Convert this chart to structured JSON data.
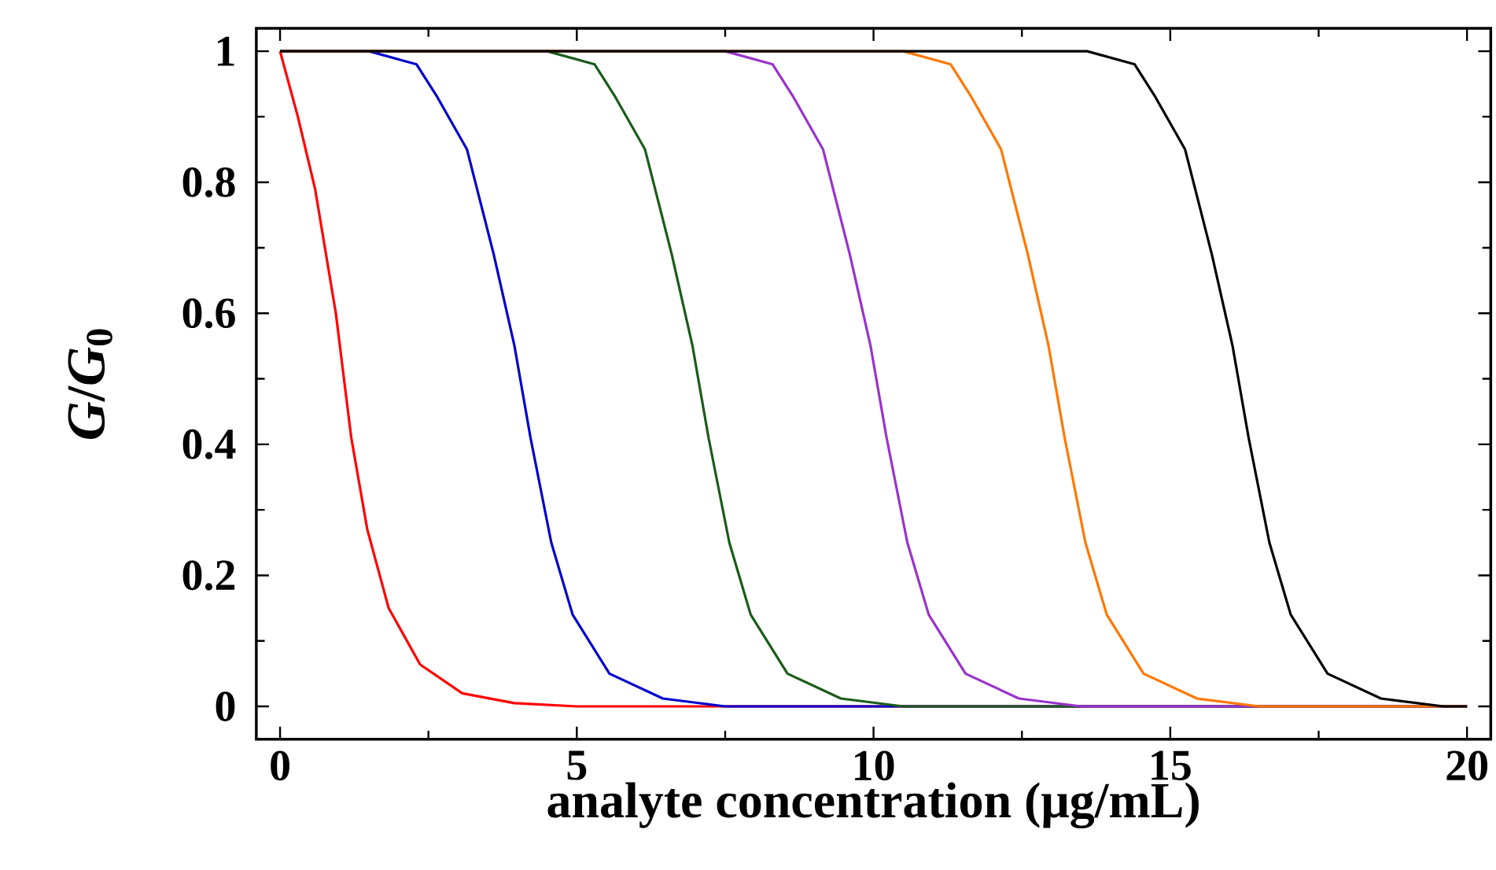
{
  "chart_data": {
    "type": "line",
    "xlabel": "analyte concentration (μg/mL)",
    "ylabel": "*G*/*G*$_{0}$",
    "xlim": [
      -0.4,
      20.4
    ],
    "ylim": [
      -0.05,
      1.035
    ],
    "xticks": [
      0,
      5,
      10,
      15,
      20
    ],
    "yticks": [
      0,
      0.2,
      0.4,
      0.6,
      0.8,
      1
    ],
    "grid": false,
    "marker": "none",
    "line_style": "solid",
    "series": [
      {
        "color": "#ff0000",
        "x": [
          0,
          0.3,
          0.59,
          0.94,
          1.2,
          1.47,
          1.83,
          2.36,
          3.07,
          3.95,
          5,
          20
        ],
        "values": [
          1,
          0.9,
          0.79,
          0.6,
          0.41,
          0.27,
          0.15,
          0.064,
          0.02,
          0.005,
          0,
          0
        ]
      },
      {
        "color": "#0000cc",
        "x": [
          0,
          1.5,
          2.3,
          2.65,
          3.15,
          3.6,
          3.95,
          4.22,
          4.57,
          4.93,
          5.55,
          6.45,
          7.5,
          20
        ],
        "values": [
          1,
          1,
          0.98,
          0.93,
          0.85,
          0.69,
          0.55,
          0.41,
          0.25,
          0.14,
          0.05,
          0.012,
          0,
          0
        ]
      },
      {
        "color": "#1a5c1a",
        "x": [
          0,
          4.5,
          5.3,
          5.65,
          6.15,
          6.6,
          6.95,
          7.22,
          7.57,
          7.93,
          8.55,
          9.45,
          10.5,
          20
        ],
        "values": [
          1,
          1,
          0.98,
          0.93,
          0.85,
          0.69,
          0.55,
          0.41,
          0.25,
          0.14,
          0.05,
          0.012,
          0,
          0
        ]
      },
      {
        "color": "#9933cc",
        "x": [
          0,
          7.5,
          8.3,
          8.65,
          9.15,
          9.6,
          9.95,
          10.22,
          10.57,
          10.93,
          11.55,
          12.45,
          13.5,
          20
        ],
        "values": [
          1,
          1,
          0.98,
          0.93,
          0.85,
          0.69,
          0.55,
          0.41,
          0.25,
          0.14,
          0.05,
          0.012,
          0,
          0
        ]
      },
      {
        "color": "#ff7700",
        "x": [
          0,
          10.5,
          11.3,
          11.65,
          12.15,
          12.6,
          12.95,
          13.22,
          13.57,
          13.93,
          14.55,
          15.45,
          16.5,
          20
        ],
        "values": [
          1,
          1,
          0.98,
          0.93,
          0.85,
          0.69,
          0.55,
          0.41,
          0.25,
          0.14,
          0.05,
          0.012,
          0,
          0
        ]
      },
      {
        "color": "#000000",
        "x": [
          0,
          13.6,
          14.4,
          14.75,
          15.25,
          15.7,
          16.05,
          16.32,
          16.67,
          17.03,
          17.65,
          18.55,
          19.6,
          20
        ],
        "values": [
          1,
          1,
          0.98,
          0.93,
          0.85,
          0.69,
          0.55,
          0.41,
          0.25,
          0.14,
          0.05,
          0.012,
          0,
          0
        ]
      }
    ]
  }
}
